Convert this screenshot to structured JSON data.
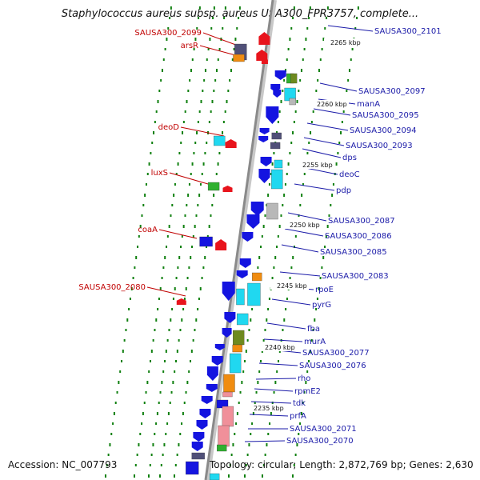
{
  "title": "Staphylococcus aureus subsp. aureus USA300_FPR3757, complete...",
  "accession": "Accession: NC_007793",
  "summary": "Topology: circular; Length: 2,872,769 bp; Genes: 2,630",
  "ticks": [
    "2265 kbp",
    "2260 kbp",
    "2255 kbp",
    "2250 kbp",
    "2245 kbp",
    "2240 kbp",
    "2235 kbp"
  ],
  "left_labels": [
    "SAUSA300_2099",
    "arsR",
    "deoD",
    "luxS",
    "coaA",
    "SAUSA300_2080"
  ],
  "right_labels": [
    "SAUSA300_2101",
    "SAUSA300_2097",
    "manA",
    "SAUSA300_2095",
    "SAUSA300_2094",
    "SAUSA300_2093",
    "dps",
    "deoC",
    "pdp",
    "SAUSA300_2087",
    "SAUSA300_2086",
    "SAUSA300_2085",
    "SAUSA300_2083",
    "rpoE",
    "pyrG",
    "fba",
    "murA",
    "SAUSA300_2077",
    "SAUSA300_2076",
    "rho",
    "rpmE2",
    "tdk",
    "prfA",
    "SAUSA300_2071",
    "SAUSA300_2070"
  ],
  "colors": {
    "forward": "#e8141c",
    "reverse": "#1414e0",
    "cyan": "#20d8f0",
    "orange": "#f08c10",
    "green": "#30b030",
    "olive": "#6e8a20",
    "slate": "#505078",
    "grey": "#b8b8b8",
    "pink": "#f0909a",
    "label_red": "#c00000",
    "label_blue": "#1a1aa8",
    "backbone": "#999999",
    "dots": "#108010"
  }
}
